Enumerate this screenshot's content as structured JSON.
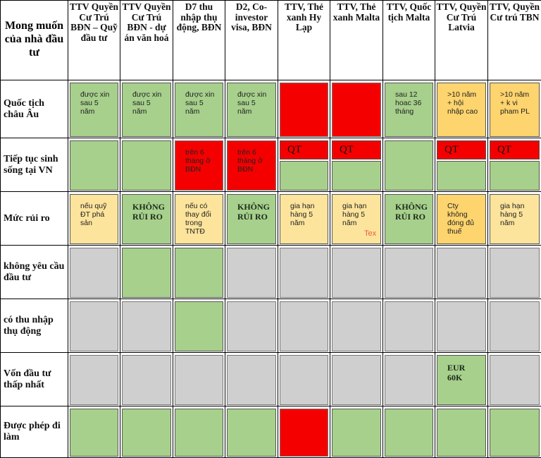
{
  "colors": {
    "green": "#a7d08c",
    "red": "#f50000",
    "gray": "#cfcfcf",
    "yellow": "#fde49c",
    "orange": "#fdd46e"
  },
  "corner_label": "Mong muốn của nhà đầu tư",
  "columns": [
    "TTV Quyền Cư Trú BĐN – Quỹ đầu tư",
    "TTV Quyền Cư Trú BĐN - dự án văn hoá",
    "D7 thu nhập thụ động, BĐN",
    "D2, Co-investor visa, BĐN",
    "TTV, Thẻ xanh Hy Lạp",
    "TTV, Thẻ xanh Malta",
    "TTV, Quốc tịch Malta",
    "TTV, Quyền Cư Trú Latvia",
    "TTV, Quyền Cư trú TBN"
  ],
  "rows": [
    {
      "label": "Quốc tịch châu Âu",
      "cells": [
        {
          "color": "green",
          "text": "được xin\nsau 5\nnăm"
        },
        {
          "color": "green",
          "text": "được xin\nsau 5\nnăm"
        },
        {
          "color": "green",
          "text": "được xin\nsau 5\nnăm"
        },
        {
          "color": "green",
          "text": "được xin\nsau 5\nnăm"
        },
        {
          "color": "red",
          "text": ""
        },
        {
          "color": "red",
          "text": ""
        },
        {
          "color": "green",
          "text": "sau 12\nhoac 36\ntháng"
        },
        {
          "color": "orange",
          "text": ">10 năm\n+ hội\nnhập cao"
        },
        {
          "color": "orange",
          "text": ">10 năm\n+ k vi\npham PL"
        }
      ]
    },
    {
      "label": "Tiếp tục sinh sống tại VN",
      "cells": [
        {
          "color": "green",
          "text": ""
        },
        {
          "color": "green",
          "text": ""
        },
        {
          "color": "red",
          "text": "trên 6\ntháng ở\nBĐN"
        },
        {
          "color": "red",
          "text": "trên 6\ntháng ở\nBĐN"
        },
        {
          "color": "split",
          "text": "QT"
        },
        {
          "color": "split",
          "text": "QT"
        },
        {
          "color": "green",
          "text": ""
        },
        {
          "color": "split",
          "text": "QT"
        },
        {
          "color": "split",
          "text": "QT"
        }
      ]
    },
    {
      "label": "Mức rủi ro",
      "cells": [
        {
          "color": "yellow",
          "text": "nếu quỹ\nĐT phá\nsản"
        },
        {
          "color": "green",
          "text": "KHÔNG\nRỦI RO",
          "bold": true
        },
        {
          "color": "yellow",
          "text": "nếu có\nthay đổi\ntrong\nTNTĐ"
        },
        {
          "color": "green",
          "text": "KHÔNG\nRỦI RO",
          "bold": true
        },
        {
          "color": "yellow",
          "text": "gia hạn\nhàng 5\nnăm"
        },
        {
          "color": "yellow",
          "text": "gia hạn\nhàng 5\nnăm"
        },
        {
          "color": "green",
          "text": "KHÔNG\nRỦI RO",
          "bold": true
        },
        {
          "color": "orange",
          "text": "Cty\nkhông\nđóng đủ\nthuế"
        },
        {
          "color": "yellow",
          "text": "gia hạn\nhàng 5\nnăm"
        }
      ]
    },
    {
      "label": "không yêu cầu đầu tư",
      "cells": [
        {
          "color": "gray",
          "text": ""
        },
        {
          "color": "green",
          "text": ""
        },
        {
          "color": "green",
          "text": ""
        },
        {
          "color": "gray",
          "text": ""
        },
        {
          "color": "gray",
          "text": ""
        },
        {
          "color": "gray",
          "text": ""
        },
        {
          "color": "gray",
          "text": ""
        },
        {
          "color": "gray",
          "text": ""
        },
        {
          "color": "gray",
          "text": ""
        }
      ]
    },
    {
      "label": "có thu nhập thụ động",
      "cells": [
        {
          "color": "gray",
          "text": ""
        },
        {
          "color": "gray",
          "text": ""
        },
        {
          "color": "green",
          "text": ""
        },
        {
          "color": "gray",
          "text": ""
        },
        {
          "color": "gray",
          "text": ""
        },
        {
          "color": "gray",
          "text": ""
        },
        {
          "color": "gray",
          "text": ""
        },
        {
          "color": "gray",
          "text": ""
        },
        {
          "color": "gray",
          "text": ""
        }
      ]
    },
    {
      "label": "Vốn đầu tư thấp nhất",
      "cells": [
        {
          "color": "gray",
          "text": ""
        },
        {
          "color": "gray",
          "text": ""
        },
        {
          "color": "gray",
          "text": ""
        },
        {
          "color": "gray",
          "text": ""
        },
        {
          "color": "gray",
          "text": ""
        },
        {
          "color": "gray",
          "text": ""
        },
        {
          "color": "gray",
          "text": ""
        },
        {
          "color": "green",
          "text": "EUR\n60K",
          "bold": true
        },
        {
          "color": "gray",
          "text": ""
        }
      ]
    },
    {
      "label": "Được phép đi làm",
      "cells": [
        {
          "color": "green",
          "text": ""
        },
        {
          "color": "green",
          "text": ""
        },
        {
          "color": "green",
          "text": ""
        },
        {
          "color": "green",
          "text": ""
        },
        {
          "color": "red",
          "text": ""
        },
        {
          "color": "green",
          "text": ""
        },
        {
          "color": "green",
          "text": ""
        },
        {
          "color": "green",
          "text": ""
        },
        {
          "color": "green",
          "text": ""
        }
      ]
    }
  ],
  "floating_text": "Tex"
}
